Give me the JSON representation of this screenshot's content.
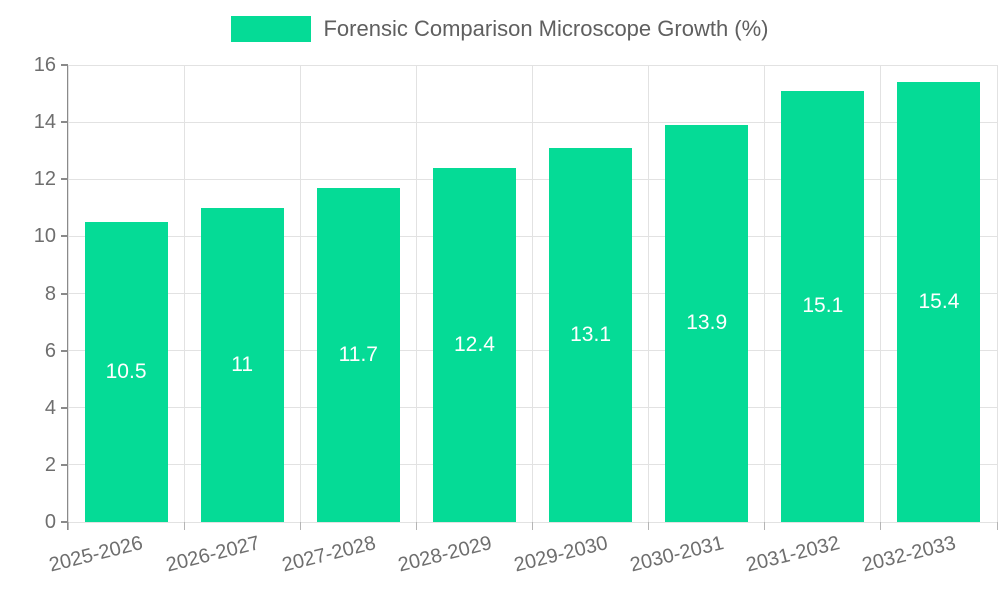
{
  "legend": {
    "label": "Forensic Comparison Microscope Growth (%)"
  },
  "colors": {
    "bar": "#05DB96",
    "grid_line": "#e2e2e2",
    "axis_line": "#8a8a8a",
    "axis_text": "#6e6e6e",
    "legend_text": "#5f5f5f",
    "bar_label": "#ffffff"
  },
  "chart_data": {
    "type": "bar",
    "title": "Forensic Comparison Microscope Growth (%)",
    "categories": [
      "2025-2026",
      "2026-2027",
      "2027-2028",
      "2028-2029",
      "2029-2030",
      "2030-2031",
      "2031-2032",
      "2032-2033"
    ],
    "values": [
      10.5,
      11,
      11.7,
      12.4,
      13.1,
      13.9,
      15.1,
      15.4
    ],
    "series": [
      {
        "name": "Forensic Comparison Microscope Growth (%)",
        "values": [
          10.5,
          11,
          11.7,
          12.4,
          13.1,
          13.9,
          15.1,
          15.4
        ]
      }
    ],
    "xlabel": "",
    "ylabel": "",
    "ylim": [
      0,
      16
    ],
    "ytick_step": 2,
    "grid": true,
    "legend_position": "top",
    "bar_labels_visible": true,
    "bar_label_position": "center"
  }
}
